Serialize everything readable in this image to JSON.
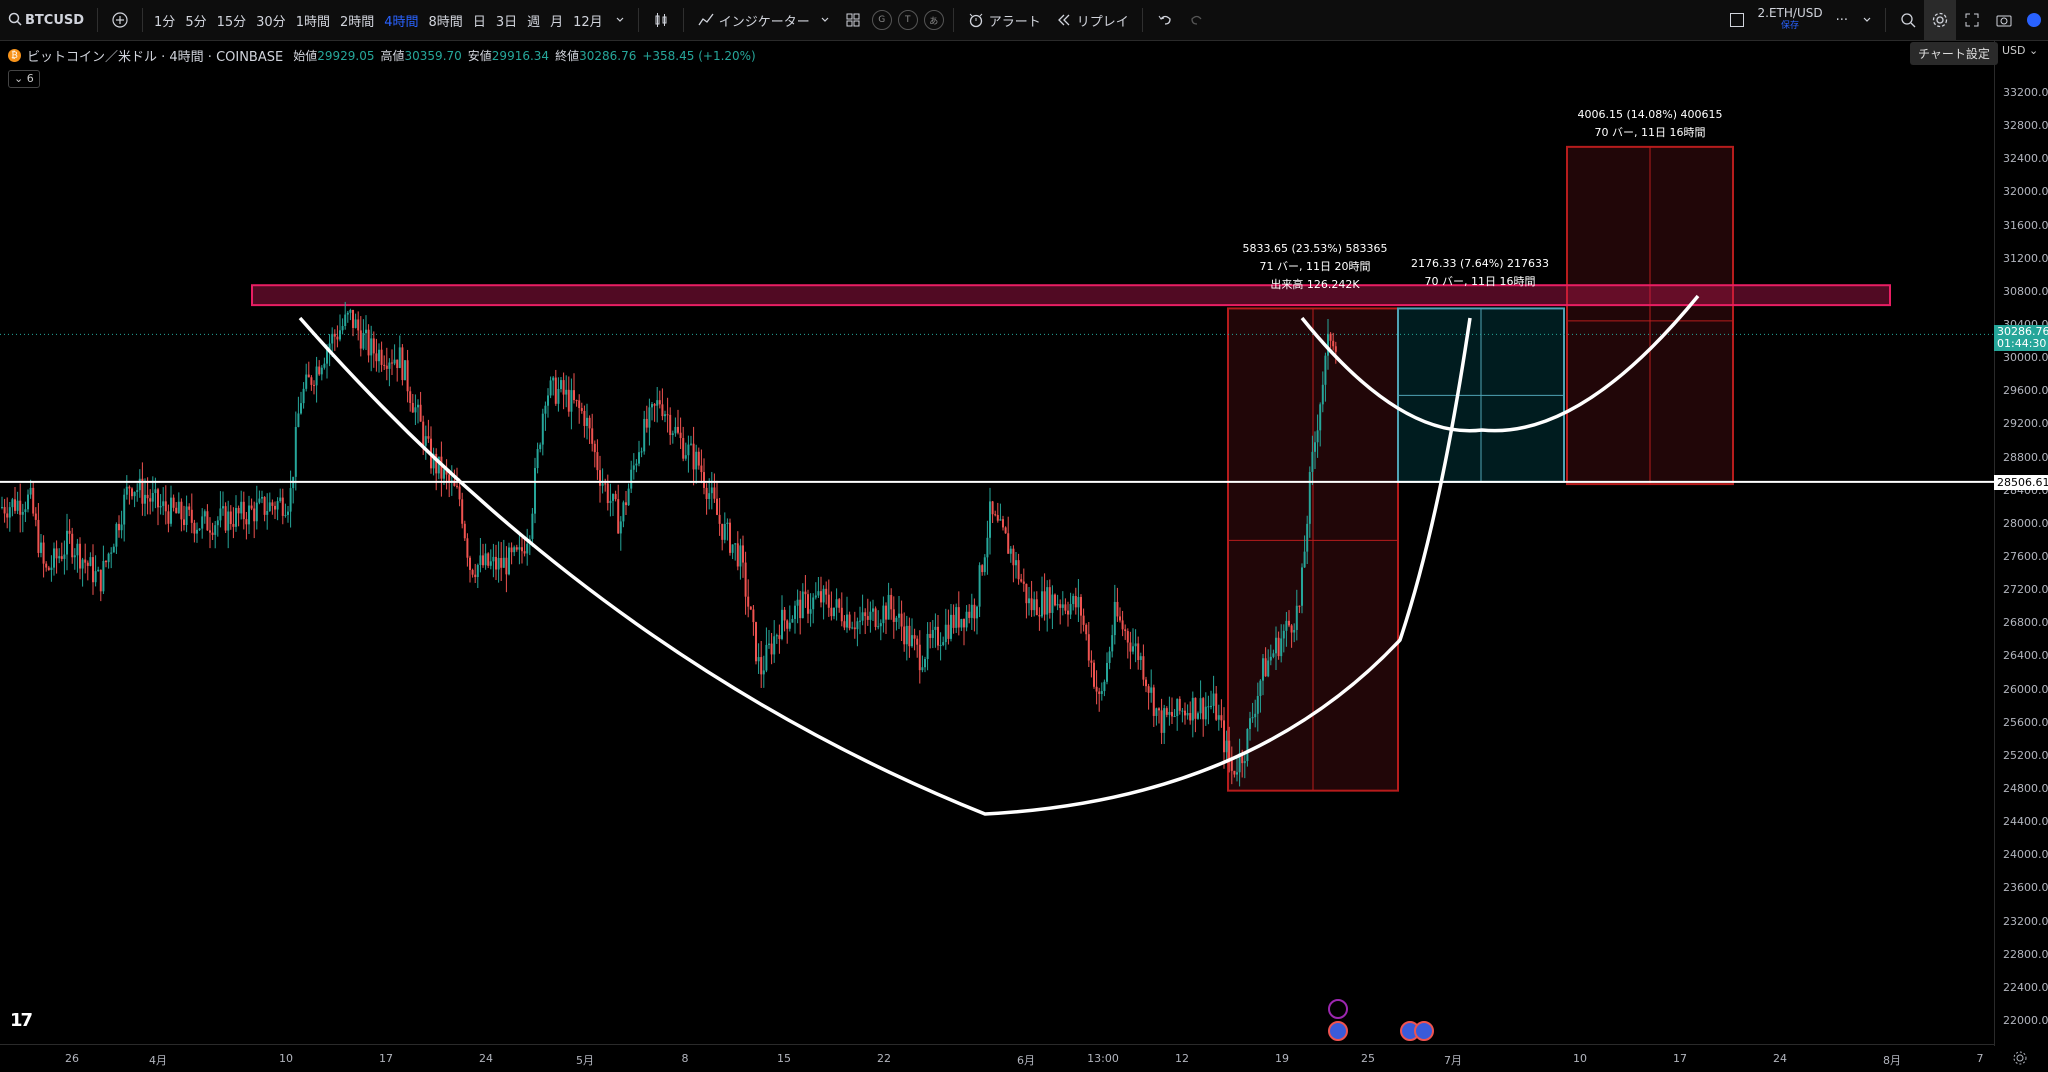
{
  "toolbar": {
    "symbol": "BTCUSD",
    "intervals": [
      "1分",
      "5分",
      "15分",
      "30分",
      "1時間",
      "2時間",
      "4時間",
      "8時間",
      "日",
      "3日",
      "週",
      "月",
      "12月"
    ],
    "active_interval": "4時間",
    "indicators": "インジケーター",
    "alert": "アラート",
    "replay": "リプレイ",
    "watch_symbol": "2.ETH/USD",
    "watch_sub": "保存"
  },
  "legend": {
    "title": "ビットコイン／米ドル · 4時間 · COINBASE",
    "open_label": "始値",
    "open": "29929.05",
    "high_label": "高値",
    "high": "30359.70",
    "low_label": "安値",
    "low": "29916.34",
    "close_label": "終値",
    "close": "30286.76",
    "change": "+358.45 (+1.20%)",
    "collapse": "6"
  },
  "tooltip": "チャート設定",
  "currency": "USD",
  "price_axis": [
    "33200.00",
    "32800.00",
    "32400.00",
    "32000.00",
    "31600.00",
    "31200.00",
    "30800.00",
    "30400.00",
    "30000.00",
    "29600.00",
    "29200.00",
    "28800.00",
    "28400.00",
    "28000.00",
    "27600.00",
    "27200.00",
    "26800.00",
    "26400.00",
    "26000.00",
    "25600.00",
    "25200.00",
    "24800.00",
    "24400.00",
    "24000.00",
    "23600.00",
    "23200.00",
    "22800.00",
    "22400.00",
    "22000.00"
  ],
  "current_price": "30286.76",
  "countdown": "01:44:30",
  "hline_price": "28506.61",
  "time_axis": [
    "26",
    "4月",
    "10",
    "17",
    "24",
    "5月",
    "8",
    "15",
    "22",
    "6月",
    "13:00",
    "12",
    "19",
    "25",
    "7月",
    "10",
    "17",
    "24",
    "8月",
    "7"
  ],
  "annotations": {
    "range1": [
      "5833.65 (23.53%) 583365",
      "71 バー, 11日 20時間",
      "出来高 126.242K"
    ],
    "range2": [
      "2176.33 (7.64%) 217633",
      "70 バー, 11日 16時間"
    ],
    "range3": [
      "4006.15 (14.08%) 400615",
      "70 バー, 11日 16時間"
    ]
  },
  "colors": {
    "up": "#26a69a",
    "down": "#ef5350",
    "accent": "#2962ff",
    "resistance": "#e91e63"
  },
  "icons": [
    "search-icon",
    "plus-icon",
    "candle-type-icon",
    "indicator-icon",
    "layout-icon",
    "alarm-icon",
    "replay-icon",
    "undo-icon",
    "redo-icon",
    "zoom-icon",
    "gear-icon",
    "fullscreen-icon",
    "camera-icon",
    "settings-small-icon"
  ]
}
